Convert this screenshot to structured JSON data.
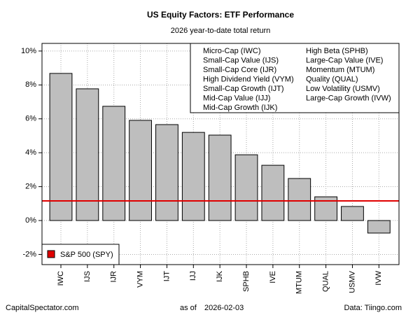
{
  "chart_data": {
    "type": "bar",
    "title": "US Equity Factors: ETF Performance",
    "subtitle": "2026 year-to-date total return",
    "categories": [
      "IWC",
      "IJS",
      "IJR",
      "VYM",
      "IJT",
      "IJJ",
      "IJK",
      "SPHB",
      "IVE",
      "MTUM",
      "QUAL",
      "USMV",
      "IVW"
    ],
    "values": [
      8.68,
      7.77,
      6.74,
      5.91,
      5.66,
      5.2,
      5.04,
      3.88,
      3.26,
      2.48,
      1.4,
      0.83,
      -0.74
    ],
    "color": "#bebebe",
    "ylim": [
      -2.6,
      10.45
    ],
    "yticks": [
      {
        "value": -2,
        "label": "-2%"
      },
      {
        "value": 0,
        "label": "0%"
      },
      {
        "value": 2,
        "label": "2%"
      },
      {
        "value": 4,
        "label": "4%"
      },
      {
        "value": 6,
        "label": "6%"
      },
      {
        "value": 8,
        "label": "8%"
      },
      {
        "value": 10,
        "label": "10%"
      }
    ],
    "grid": true,
    "reference": {
      "name": "S&P 500 (SPY)",
      "value": 1.16,
      "color": "#e00000"
    },
    "key": {
      "left": [
        "Micro-Cap (IWC)",
        "Small-Cap Value (IJS)",
        "Small-Cap Core (IJR)",
        "High Dividend Yield (VYM)",
        "Small-Cap Growth (IJT)",
        "Mid-Cap Value (IJJ)",
        "Mid-Cap Growth (IJK)"
      ],
      "right": [
        "High Beta (SPHB)",
        "Large-Cap Value (IVE)",
        "Momentum (MTUM)",
        "Quality (QUAL)",
        "Low Volatility (USMV)",
        "Large-Cap Growth (IVW)"
      ]
    },
    "footer": {
      "left": "CapitalSpectator.com",
      "center_label": "as of",
      "center_date": "2026-02-03",
      "right": "Data: Tiingo.com"
    }
  }
}
